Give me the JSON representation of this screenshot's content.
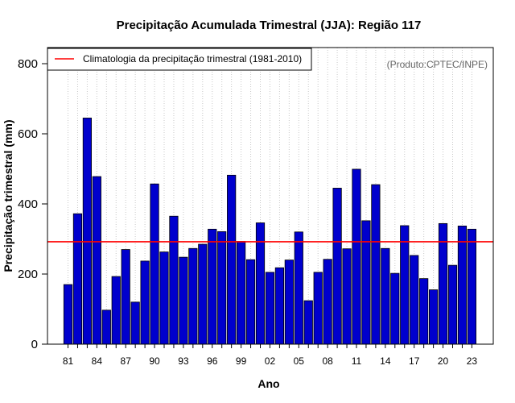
{
  "chart_data": {
    "type": "bar",
    "title": "Precipitação Acumulada Trimestral (JJA): Região 117",
    "xlabel": "Ano",
    "ylabel": "Precipitação trimestral (mm)",
    "credit": "(Produto:CPTEC/INPE)",
    "ylim": [
      0,
      850
    ],
    "yticks": [
      0,
      200,
      400,
      600,
      800
    ],
    "xtick_labels": [
      "81",
      "84",
      "87",
      "90",
      "93",
      "96",
      "99",
      "02",
      "05",
      "08",
      "11",
      "14",
      "17",
      "20",
      "23"
    ],
    "categories": [
      "1981",
      "1982",
      "1983",
      "1984",
      "1985",
      "1986",
      "1987",
      "1988",
      "1989",
      "1990",
      "1991",
      "1992",
      "1993",
      "1994",
      "1995",
      "1996",
      "1997",
      "1998",
      "1999",
      "2000",
      "2001",
      "2002",
      "2003",
      "2004",
      "2005",
      "2006",
      "2007",
      "2008",
      "2009",
      "2010",
      "2011",
      "2012",
      "2013",
      "2014",
      "2015",
      "2016",
      "2017",
      "2018",
      "2019",
      "2020",
      "2021",
      "2022",
      "2023"
    ],
    "values": [
      170,
      372,
      645,
      478,
      97,
      193,
      270,
      120,
      237,
      457,
      263,
      365,
      248,
      273,
      285,
      328,
      321,
      482,
      293,
      241,
      346,
      205,
      218,
      240,
      320,
      124,
      205,
      242,
      445,
      272,
      499,
      352,
      455,
      273,
      202,
      338,
      253,
      187,
      155,
      344,
      225,
      337,
      328
    ],
    "bar_color": "#0000cd",
    "climatology": {
      "value": 292,
      "label": "Climatologia da precipitação trimestral (1981-2010)",
      "color": "#ff0000"
    },
    "grid": "vertical-dotted",
    "legend_position": "top-left"
  }
}
